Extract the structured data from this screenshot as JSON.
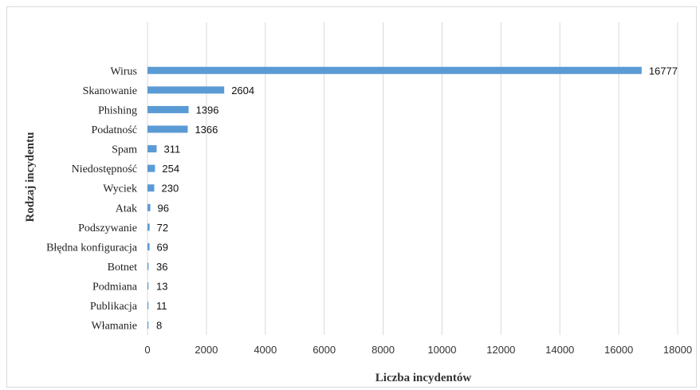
{
  "chart_data": {
    "type": "bar",
    "orientation": "horizontal",
    "categories": [
      "Wirus",
      "Skanowanie",
      "Phishing",
      "Podatność",
      "Spam",
      "Niedostępność",
      "Wyciek",
      "Atak",
      "Podszywanie",
      "Błędna konfiguracja",
      "Botnet",
      "Podmiana",
      "Publikacja",
      "Włamanie"
    ],
    "values": [
      16777,
      2604,
      1396,
      1366,
      311,
      254,
      230,
      96,
      72,
      69,
      36,
      13,
      11,
      8
    ],
    "xlabel": "Liczba incydentów",
    "ylabel": "Rodzaj incydentu",
    "xlim": [
      0,
      18000
    ],
    "xticks": [
      0,
      2000,
      4000,
      6000,
      8000,
      10000,
      12000,
      14000,
      16000,
      18000
    ],
    "grid": true,
    "data_labels": true,
    "bar_color": "#5b9bd5",
    "grid_color": "#d9d9d9"
  }
}
